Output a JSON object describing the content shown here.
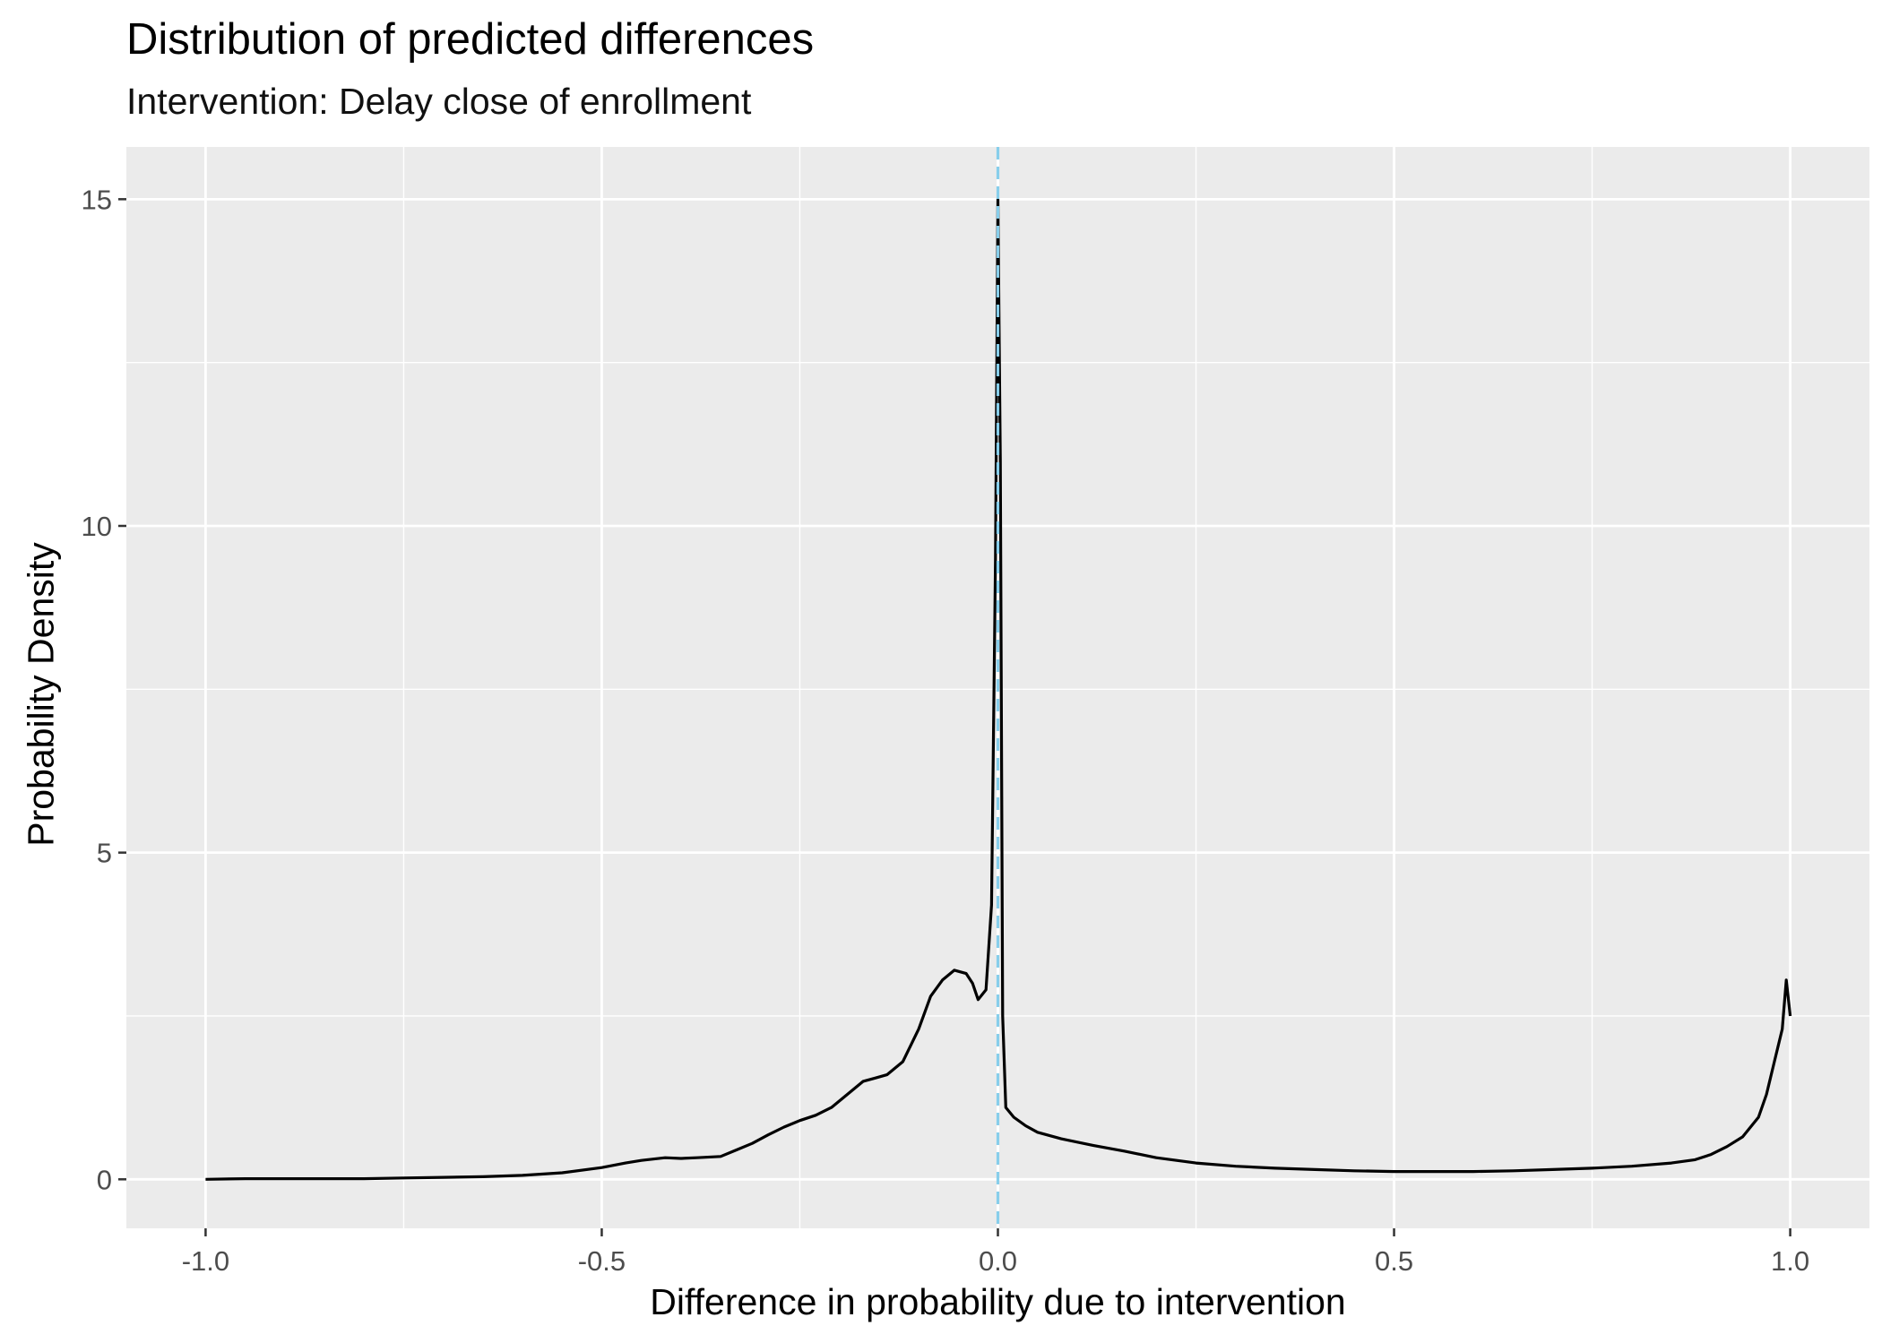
{
  "chart_data": {
    "type": "line",
    "title": "Distribution of predicted differences",
    "subtitle": "Intervention: Delay close of enrollment",
    "xlabel": "Difference in probability due to intervention",
    "ylabel": "Probability Density",
    "xlim": [
      -1.1,
      1.1
    ],
    "ylim": [
      -0.75,
      15.8
    ],
    "x_ticks": [
      -1.0,
      -0.5,
      0.0,
      0.5,
      1.0
    ],
    "x_tick_labels": [
      "-1.0",
      "-0.5",
      "0.0",
      "0.5",
      "1.0"
    ],
    "y_ticks": [
      0,
      5,
      10,
      15
    ],
    "y_tick_labels": [
      "0",
      "5",
      "10",
      "15"
    ],
    "grid": true,
    "reference_line": {
      "x": 0.0,
      "style": "dashed",
      "color": "#87ceeb"
    },
    "series": [
      {
        "color": "#000000",
        "x": [
          -1.0,
          -0.95,
          -0.9,
          -0.85,
          -0.8,
          -0.75,
          -0.7,
          -0.65,
          -0.6,
          -0.55,
          -0.5,
          -0.47,
          -0.45,
          -0.42,
          -0.4,
          -0.38,
          -0.35,
          -0.33,
          -0.31,
          -0.29,
          -0.27,
          -0.25,
          -0.23,
          -0.21,
          -0.19,
          -0.17,
          -0.155,
          -0.14,
          -0.12,
          -0.1,
          -0.085,
          -0.07,
          -0.055,
          -0.04,
          -0.032,
          -0.025,
          -0.015,
          -0.008,
          -0.003,
          0.0,
          0.003,
          0.006,
          0.01,
          0.02,
          0.035,
          0.05,
          0.08,
          0.12,
          0.16,
          0.2,
          0.25,
          0.3,
          0.35,
          0.4,
          0.45,
          0.5,
          0.55,
          0.6,
          0.65,
          0.7,
          0.75,
          0.8,
          0.85,
          0.88,
          0.9,
          0.92,
          0.94,
          0.96,
          0.97,
          0.98,
          0.99,
          0.995,
          1.0
        ],
        "y": [
          0.0,
          0.01,
          0.01,
          0.01,
          0.01,
          0.02,
          0.03,
          0.04,
          0.06,
          0.1,
          0.18,
          0.25,
          0.29,
          0.33,
          0.32,
          0.33,
          0.35,
          0.45,
          0.55,
          0.68,
          0.8,
          0.9,
          0.98,
          1.1,
          1.3,
          1.5,
          1.55,
          1.6,
          1.8,
          2.3,
          2.8,
          3.05,
          3.2,
          3.15,
          3.0,
          2.75,
          2.9,
          4.2,
          9.5,
          15.0,
          11.0,
          2.5,
          1.1,
          0.95,
          0.82,
          0.72,
          0.62,
          0.52,
          0.43,
          0.33,
          0.25,
          0.2,
          0.17,
          0.15,
          0.13,
          0.12,
          0.12,
          0.12,
          0.13,
          0.15,
          0.17,
          0.2,
          0.25,
          0.3,
          0.38,
          0.5,
          0.65,
          0.95,
          1.3,
          1.8,
          2.3,
          3.05,
          2.5
        ]
      }
    ]
  }
}
